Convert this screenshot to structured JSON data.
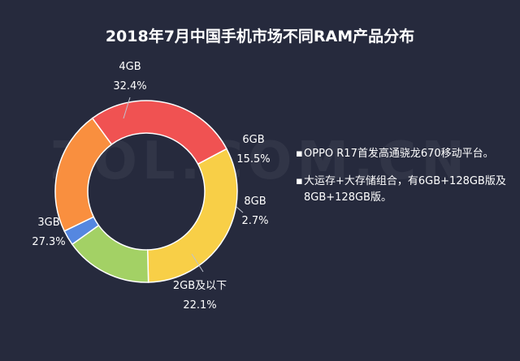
{
  "chart_data": {
    "type": "pie",
    "variant": "donut",
    "title": "2018年7月中国手机市场不同RAM产品分布",
    "categories": [
      "4GB",
      "6GB",
      "8GB",
      "2GB及以下",
      "3GB"
    ],
    "values": [
      32.4,
      15.5,
      2.7,
      22.1,
      27.3
    ],
    "value_labels": [
      "32.4%",
      "15.5%",
      "2.7%",
      "22.1%",
      "27.3%"
    ],
    "colors": [
      "#f8cf47",
      "#a3d165",
      "#5587e0",
      "#f98f3f",
      "#f05252"
    ],
    "start_angle_deg": 62,
    "direction": "clockwise"
  },
  "notes": [
    "OPPO R17首发高通骁龙670移动平台。",
    "大运存+大存储组合，有6GB+128GB版及8GB+128GB版。"
  ],
  "bullet": "▪",
  "watermark": "ZOL.COM.CN"
}
